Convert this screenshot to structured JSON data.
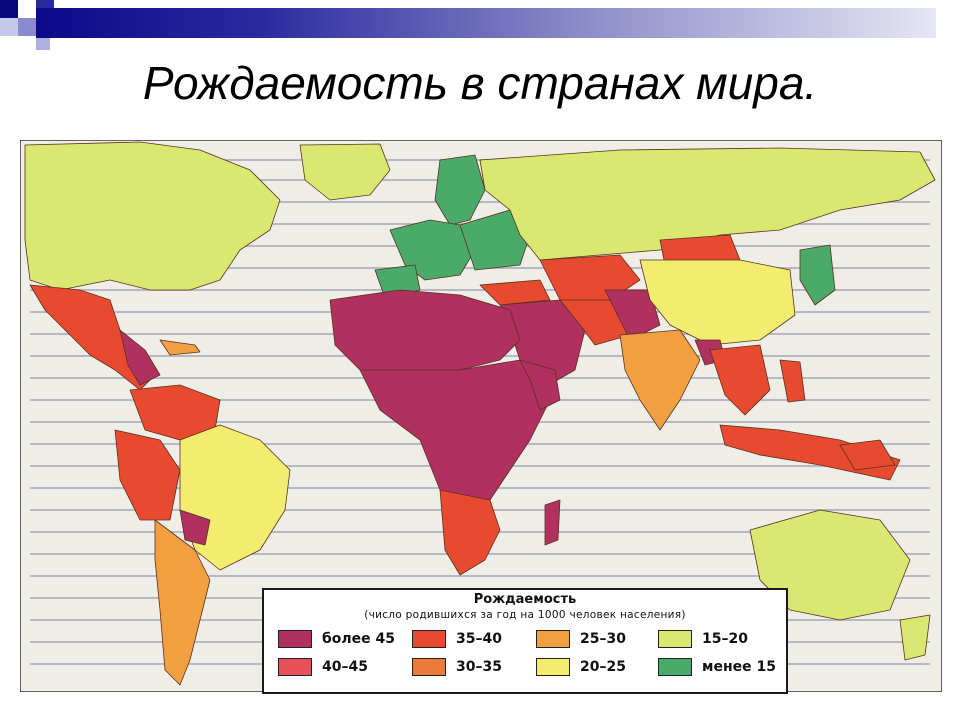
{
  "slide": {
    "title": "Рождаемость в странах мира."
  },
  "legend": {
    "title": "Рождаемость",
    "subtitle": "(число родившихся за год на 1000 человек населения)",
    "items": [
      {
        "label": "более 45",
        "color": "#b03060"
      },
      {
        "label": "40–45",
        "color": "#e8505a"
      },
      {
        "label": "35–40",
        "color": "#e84a30"
      },
      {
        "label": "30–35",
        "color": "#ec7a3a"
      },
      {
        "label": "25–30",
        "color": "#f0a040"
      },
      {
        "label": "20–25",
        "color": "#f2ec70"
      },
      {
        "label": "15–20",
        "color": "#d8e870"
      },
      {
        "label": "менее 15",
        "color": "#4aaa6a"
      }
    ]
  },
  "map": {
    "background_color": "#f2f0e8",
    "ocean_text_color": "#6c6c7a"
  }
}
